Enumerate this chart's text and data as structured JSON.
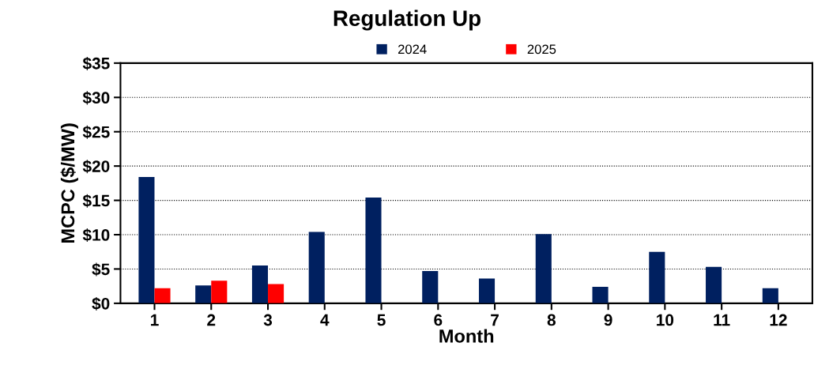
{
  "chart_data": {
    "type": "bar",
    "title": "Regulation Up",
    "xlabel": "Month",
    "ylabel": "MCPC ($/MW)",
    "categories": [
      "1",
      "2",
      "3",
      "4",
      "5",
      "6",
      "7",
      "8",
      "9",
      "10",
      "11",
      "12"
    ],
    "series": [
      {
        "name": "2024",
        "color": "#002060",
        "values": [
          18.4,
          2.6,
          5.5,
          10.4,
          15.4,
          4.7,
          3.6,
          10.1,
          2.4,
          7.5,
          5.3,
          2.2
        ]
      },
      {
        "name": "2025",
        "color": "#ff0000",
        "values": [
          2.2,
          3.3,
          2.8,
          null,
          null,
          null,
          null,
          null,
          null,
          null,
          null,
          null
        ]
      }
    ],
    "ylim": [
      0,
      35
    ],
    "yticks": [
      {
        "value": 0,
        "label": "$0"
      },
      {
        "value": 5,
        "label": "$5"
      },
      {
        "value": 10,
        "label": "$10"
      },
      {
        "value": 15,
        "label": "$15"
      },
      {
        "value": 20,
        "label": "$20"
      },
      {
        "value": 25,
        "label": "$25"
      },
      {
        "value": 30,
        "label": "$30"
      },
      {
        "value": 35,
        "label": "$35"
      }
    ],
    "grid": "y",
    "legend": "top"
  }
}
